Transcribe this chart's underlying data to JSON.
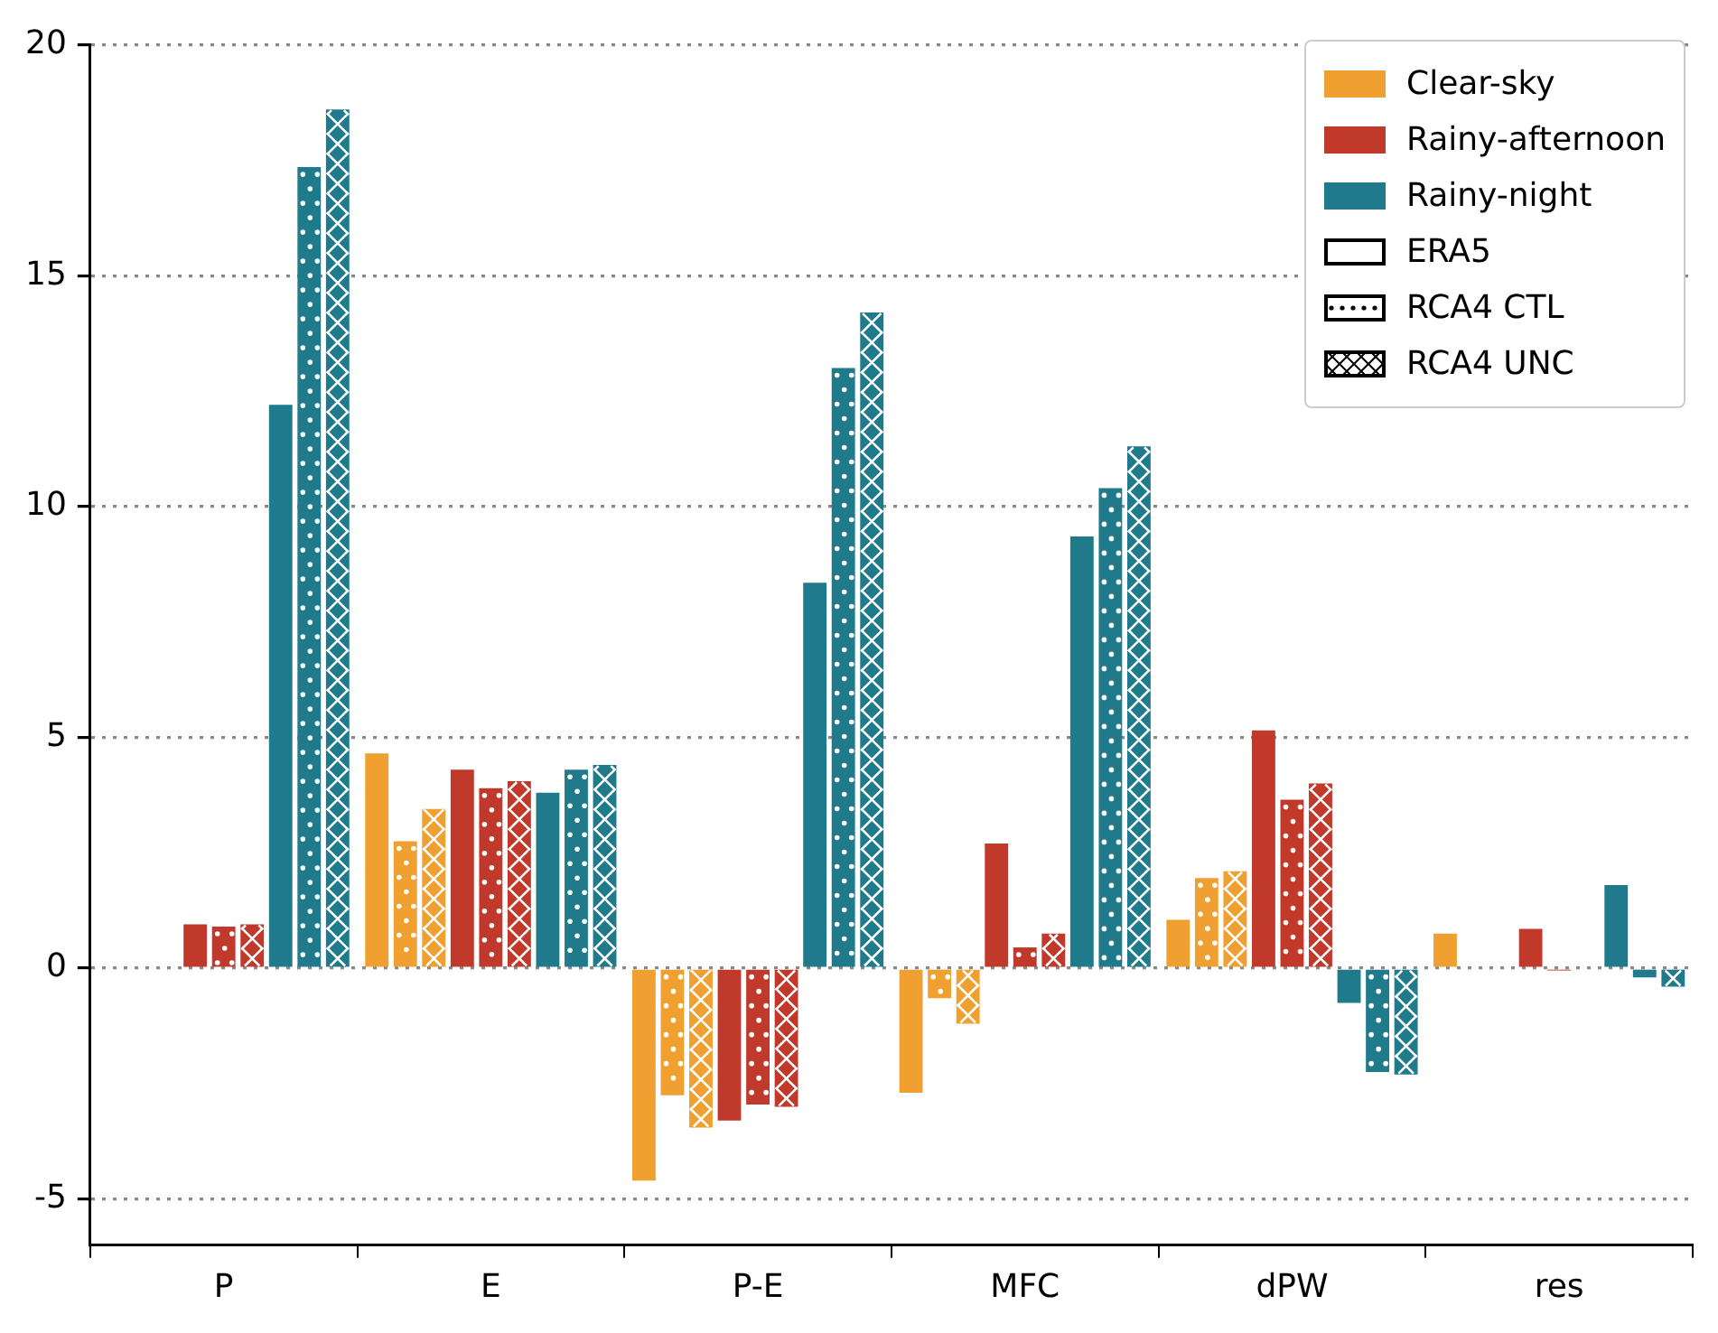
{
  "chart_data": {
    "type": "bar",
    "categories": [
      "P",
      "E",
      "P-E",
      "MFC",
      "dPW",
      "res"
    ],
    "series": [
      {
        "name": "Clear-sky",
        "color": "#f0a030",
        "values": [
          0,
          4.65,
          -4.6,
          -2.7,
          1.05,
          0.75
        ]
      },
      {
        "color": "#f0a030",
        "values": [
          0,
          2.75,
          -2.75,
          -0.65,
          1.95,
          0
        ]
      },
      {
        "color": "#f0a030",
        "values": [
          0,
          3.45,
          -3.45,
          -1.2,
          2.1,
          0
        ]
      },
      {
        "name": "Rainy-afternoon",
        "color": "#c0392b",
        "values": [
          0.95,
          4.3,
          -3.3,
          2.7,
          5.15,
          0.85
        ]
      },
      {
        "color": "#c0392b",
        "values": [
          0.9,
          3.9,
          -2.95,
          0.45,
          3.65,
          -0.05
        ]
      },
      {
        "color": "#c0392b",
        "values": [
          0.95,
          4.05,
          -3.0,
          0.75,
          4.0,
          0
        ]
      },
      {
        "name": "Rainy-night",
        "color": "#1f7a8c",
        "values": [
          12.2,
          3.8,
          8.35,
          9.35,
          -0.75,
          1.8
        ]
      },
      {
        "color": "#1f7a8c",
        "values": [
          17.35,
          4.3,
          13.0,
          10.4,
          -2.25,
          -0.2
        ]
      },
      {
        "color": "#1f7a8c",
        "values": [
          18.6,
          4.4,
          14.2,
          11.3,
          -2.3,
          -0.4
        ]
      }
    ],
    "annotations": [
      "ERA5",
      "RCA4 CTL",
      "RCA4 UNC"
    ],
    "ylim": [
      -6,
      20
    ],
    "yticks": [
      -5,
      0,
      5,
      10,
      15,
      20
    ],
    "grid": "y",
    "legend": "top right"
  }
}
